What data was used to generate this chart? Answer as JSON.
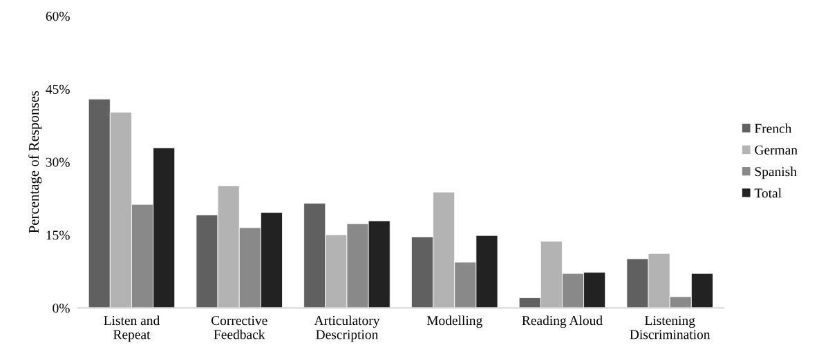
{
  "chart_data": {
    "type": "bar",
    "ylabel": "Percentage of Responses",
    "categories": [
      "Listen and\nRepeat",
      "Corrective\nFeedback",
      "Articulatory\nDescription",
      "Modelling",
      "Reading Aloud",
      "Listening\nDiscrimination"
    ],
    "series": [
      {
        "name": "French",
        "color": "#606060",
        "values": [
          42.9,
          19.1,
          21.5,
          14.6,
          2.1,
          10.1
        ]
      },
      {
        "name": "German",
        "color": "#b3b3b3",
        "values": [
          40.2,
          25.1,
          15.0,
          23.8,
          13.7,
          11.2
        ]
      },
      {
        "name": "Spanish",
        "color": "#898989",
        "values": [
          21.3,
          16.5,
          17.3,
          9.4,
          7.1,
          2.3
        ]
      },
      {
        "name": "Total",
        "color": "#222222",
        "values": [
          32.9,
          19.6,
          17.9,
          14.9,
          7.3,
          7.1
        ]
      }
    ],
    "ylim": [
      0,
      60
    ],
    "yticks": [
      {
        "value": 0,
        "label": "0%"
      },
      {
        "value": 15,
        "label": "15%"
      },
      {
        "value": 30,
        "label": "30%"
      },
      {
        "value": 45,
        "label": "45%"
      },
      {
        "value": 60,
        "label": "60%"
      }
    ],
    "grid": false,
    "legend": "right"
  }
}
